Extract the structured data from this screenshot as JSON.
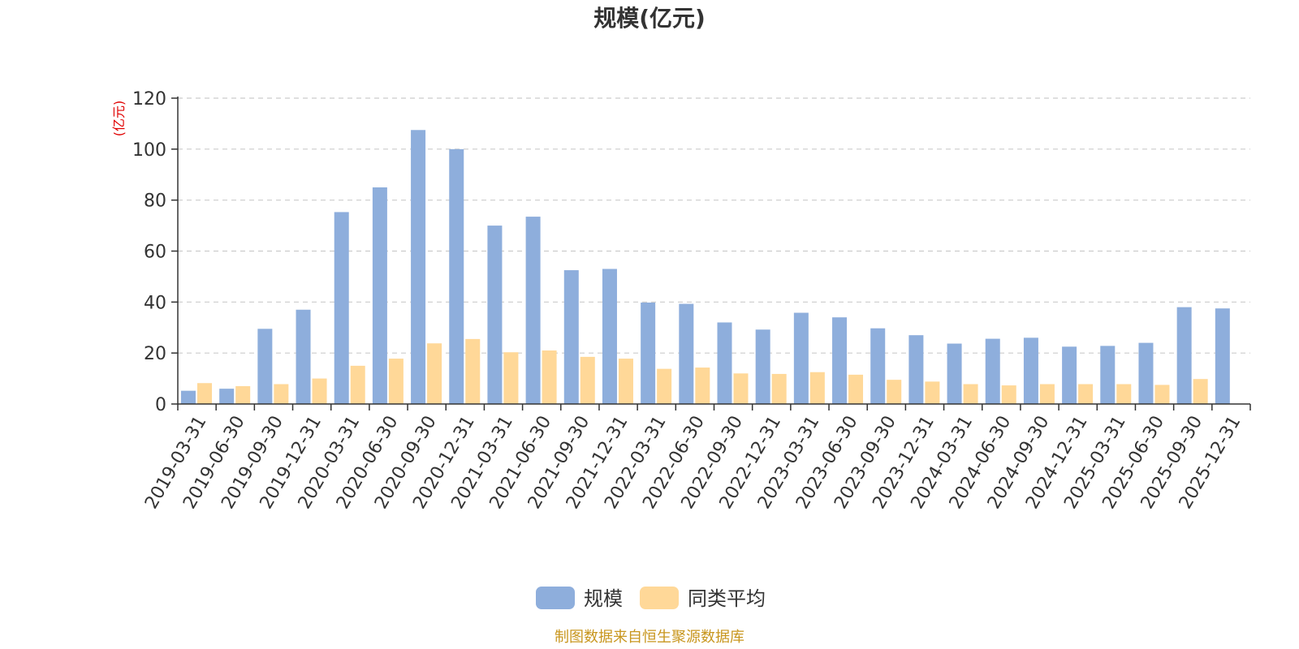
{
  "chart_data": {
    "type": "bar",
    "title": "规模(亿元)",
    "y_unit": "(亿元)",
    "ylim": [
      0,
      120
    ],
    "y_ticks": [
      0,
      20,
      40,
      60,
      80,
      100,
      120
    ],
    "grid": true,
    "legend_position": "bottom-center",
    "categories": [
      "2019-03-31",
      "2019-06-30",
      "2019-09-30",
      "2019-12-31",
      "2020-03-31",
      "2020-06-30",
      "2020-09-30",
      "2020-12-31",
      "2021-03-31",
      "2021-06-30",
      "2021-09-30",
      "2021-12-31",
      "2022-03-31",
      "2022-06-30",
      "2022-09-30",
      "2022-12-31",
      "2023-03-31",
      "2023-06-30",
      "2023-09-30",
      "2023-12-31",
      "2024-03-31",
      "2024-06-30",
      "2024-09-30",
      "2024-12-31",
      "2025-03-31",
      "2025-06-30",
      "2025-09-30",
      "2025-12-31"
    ],
    "series": [
      {
        "name": "规模",
        "color": "#8eaedc",
        "values": [
          5.2,
          6.0,
          29.5,
          37.0,
          75.3,
          85.0,
          107.5,
          100.0,
          70.0,
          73.5,
          52.5,
          53.0,
          39.8,
          39.3,
          32.0,
          29.2,
          35.8,
          34.0,
          29.7,
          27.0,
          23.7,
          25.6,
          26.0,
          22.5,
          22.8,
          24.0,
          38.0,
          37.5
        ]
      },
      {
        "name": "同类平均",
        "color": "#ffd898",
        "values": [
          8.2,
          7.0,
          7.8,
          10.0,
          15.0,
          17.8,
          23.8,
          25.5,
          20.3,
          21.0,
          18.5,
          17.8,
          13.8,
          14.3,
          12.0,
          11.8,
          12.5,
          11.5,
          9.5,
          8.8,
          7.8,
          7.3,
          7.8,
          7.8,
          7.8,
          7.5,
          9.8,
          null
        ]
      }
    ]
  },
  "footer_text": "制图数据来自恒生聚源数据库"
}
